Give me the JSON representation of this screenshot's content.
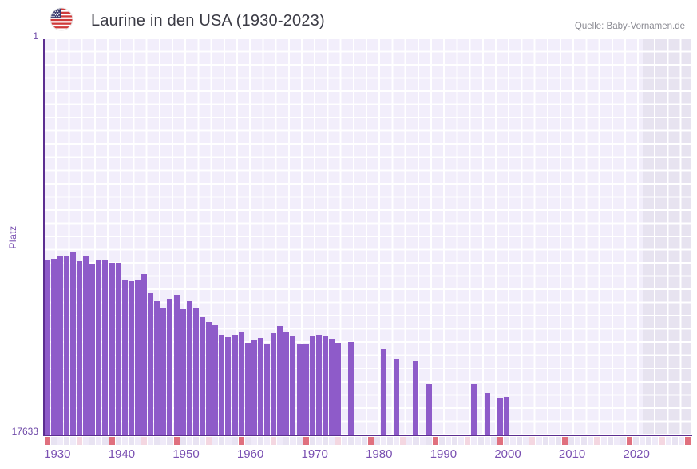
{
  "header": {
    "title": "Laurine in den USA (1930-2023)",
    "source": "Quelle: Baby-Vornamen.de",
    "flag_icon": "us-flag-icon"
  },
  "chart_data": {
    "type": "bar",
    "title": "Laurine in den USA (1930-2023)",
    "xlabel": "",
    "ylabel": "Platz",
    "y_axis": {
      "top_tick_label": "1",
      "bottom_tick_label": "17633",
      "min": 1,
      "max": 17633,
      "inverted": true,
      "scale": "linear"
    },
    "x_axis": {
      "tick_labels": [
        "1930",
        "1940",
        "1950",
        "1960",
        "1970",
        "1980",
        "1990",
        "2000",
        "2010",
        "2020"
      ],
      "tick_years": [
        1930,
        1940,
        1950,
        1960,
        1970,
        1980,
        1990,
        2000,
        2010,
        2020
      ],
      "range_start": 1930,
      "range_end": 2029,
      "future_region_start": 2022
    },
    "grid": "on",
    "legend": "none",
    "series": [
      {
        "name": "Platz",
        "points_year_rank": [
          [
            1930,
            9850
          ],
          [
            1931,
            9780
          ],
          [
            1932,
            9630
          ],
          [
            1933,
            9670
          ],
          [
            1934,
            9490
          ],
          [
            1935,
            9880
          ],
          [
            1936,
            9670
          ],
          [
            1937,
            9990
          ],
          [
            1938,
            9850
          ],
          [
            1939,
            9810
          ],
          [
            1940,
            9950
          ],
          [
            1941,
            9950
          ],
          [
            1942,
            10700
          ],
          [
            1943,
            10770
          ],
          [
            1944,
            10740
          ],
          [
            1945,
            10450
          ],
          [
            1946,
            11300
          ],
          [
            1947,
            11660
          ],
          [
            1948,
            11980
          ],
          [
            1949,
            11550
          ],
          [
            1950,
            11380
          ],
          [
            1951,
            12020
          ],
          [
            1952,
            11660
          ],
          [
            1953,
            11950
          ],
          [
            1954,
            12370
          ],
          [
            1955,
            12590
          ],
          [
            1956,
            12730
          ],
          [
            1957,
            13150
          ],
          [
            1958,
            13260
          ],
          [
            1959,
            13150
          ],
          [
            1960,
            13010
          ],
          [
            1961,
            13510
          ],
          [
            1962,
            13370
          ],
          [
            1963,
            13300
          ],
          [
            1964,
            13580
          ],
          [
            1965,
            13080
          ],
          [
            1966,
            12760
          ],
          [
            1967,
            13010
          ],
          [
            1968,
            13190
          ],
          [
            1969,
            13580
          ],
          [
            1970,
            13580
          ],
          [
            1971,
            13230
          ],
          [
            1972,
            13150
          ],
          [
            1973,
            13230
          ],
          [
            1974,
            13330
          ],
          [
            1975,
            13510
          ],
          [
            1977,
            13470
          ],
          [
            1982,
            13790
          ],
          [
            1984,
            14220
          ],
          [
            1987,
            14330
          ],
          [
            1989,
            15320
          ],
          [
            1996,
            15360
          ],
          [
            1998,
            15750
          ],
          [
            2000,
            15960
          ],
          [
            2001,
            15930
          ]
        ]
      }
    ],
    "colors": {
      "bar": "#8e5bc9",
      "axis_line": "#5c2e91",
      "tick_text": "#7a50b2",
      "plot_background": "#f2eefb",
      "future_region": "#e7e3f0",
      "strip_decade": "#e0707e",
      "strip_half_decade": "#f4d7e1",
      "strip_even": "#efeaf8",
      "strip_odd": "#e8e3f2"
    }
  }
}
